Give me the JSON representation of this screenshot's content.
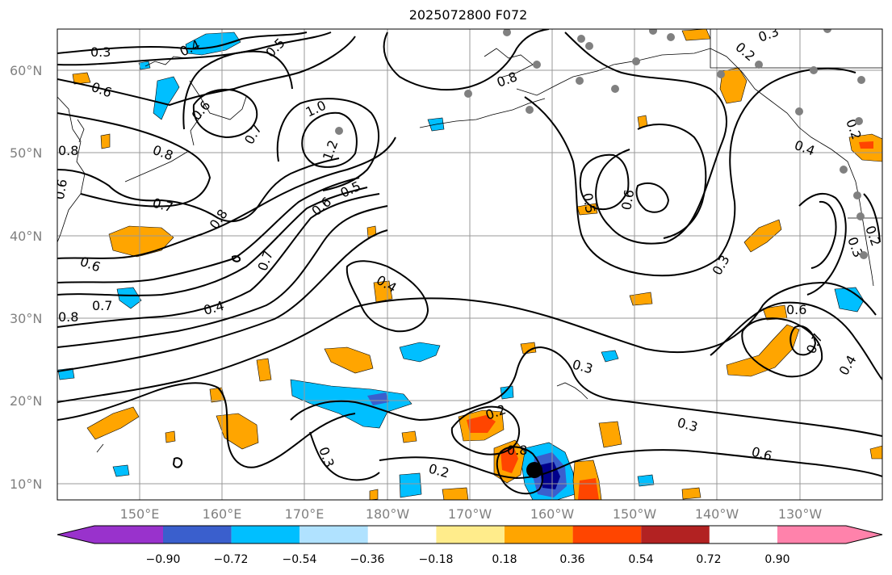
{
  "title": "2025072800 F072",
  "map": {
    "lat_labels": [
      "60°N",
      "50°N",
      "40°N",
      "30°N",
      "20°N",
      "10°N"
    ],
    "lon_labels": [
      "150°E",
      "160°E",
      "170°E",
      "180°W",
      "170°W",
      "160°W",
      "150°W",
      "140°W",
      "130°W"
    ],
    "contour_labels": [
      "0.3",
      "0.4",
      "0.5",
      "0.6",
      "0.6",
      "0.8",
      "0.7",
      "1.0",
      "1.2",
      "0.8",
      "0.6",
      "0.7",
      "0.8",
      "0.6",
      "0.5",
      "0.7",
      "0.6",
      "0.7",
      "0.8",
      "0.4",
      "0.4",
      "0.8",
      "0.5",
      "0.6",
      "0.2",
      "0.3",
      "0.2",
      "0.4",
      "0.3",
      "0.3",
      "0.2",
      "0.3",
      "0.2",
      "0.6",
      "0.7",
      "0.4",
      "0.3",
      "0.6",
      "0.3",
      "0.8",
      "0.2"
    ],
    "stations": "gray observation dots",
    "storm_marker": "black filled circle near 12°N 161°W"
  },
  "colorbar": {
    "colors": [
      "#9932cc",
      "#00008b",
      "#3a5fcd",
      "#00bfff",
      "#b0e2ff",
      "#ffffff",
      "#ffec8b",
      "#ffa500",
      "#ff4500",
      "#b22222",
      "#ff82ab"
    ],
    "tick_labels": [
      "−0.90",
      "−0.72",
      "−0.54",
      "−0.36",
      "−0.18",
      "0.18",
      "0.36",
      "0.54",
      "0.72",
      "0.90"
    ],
    "extend": "both"
  }
}
